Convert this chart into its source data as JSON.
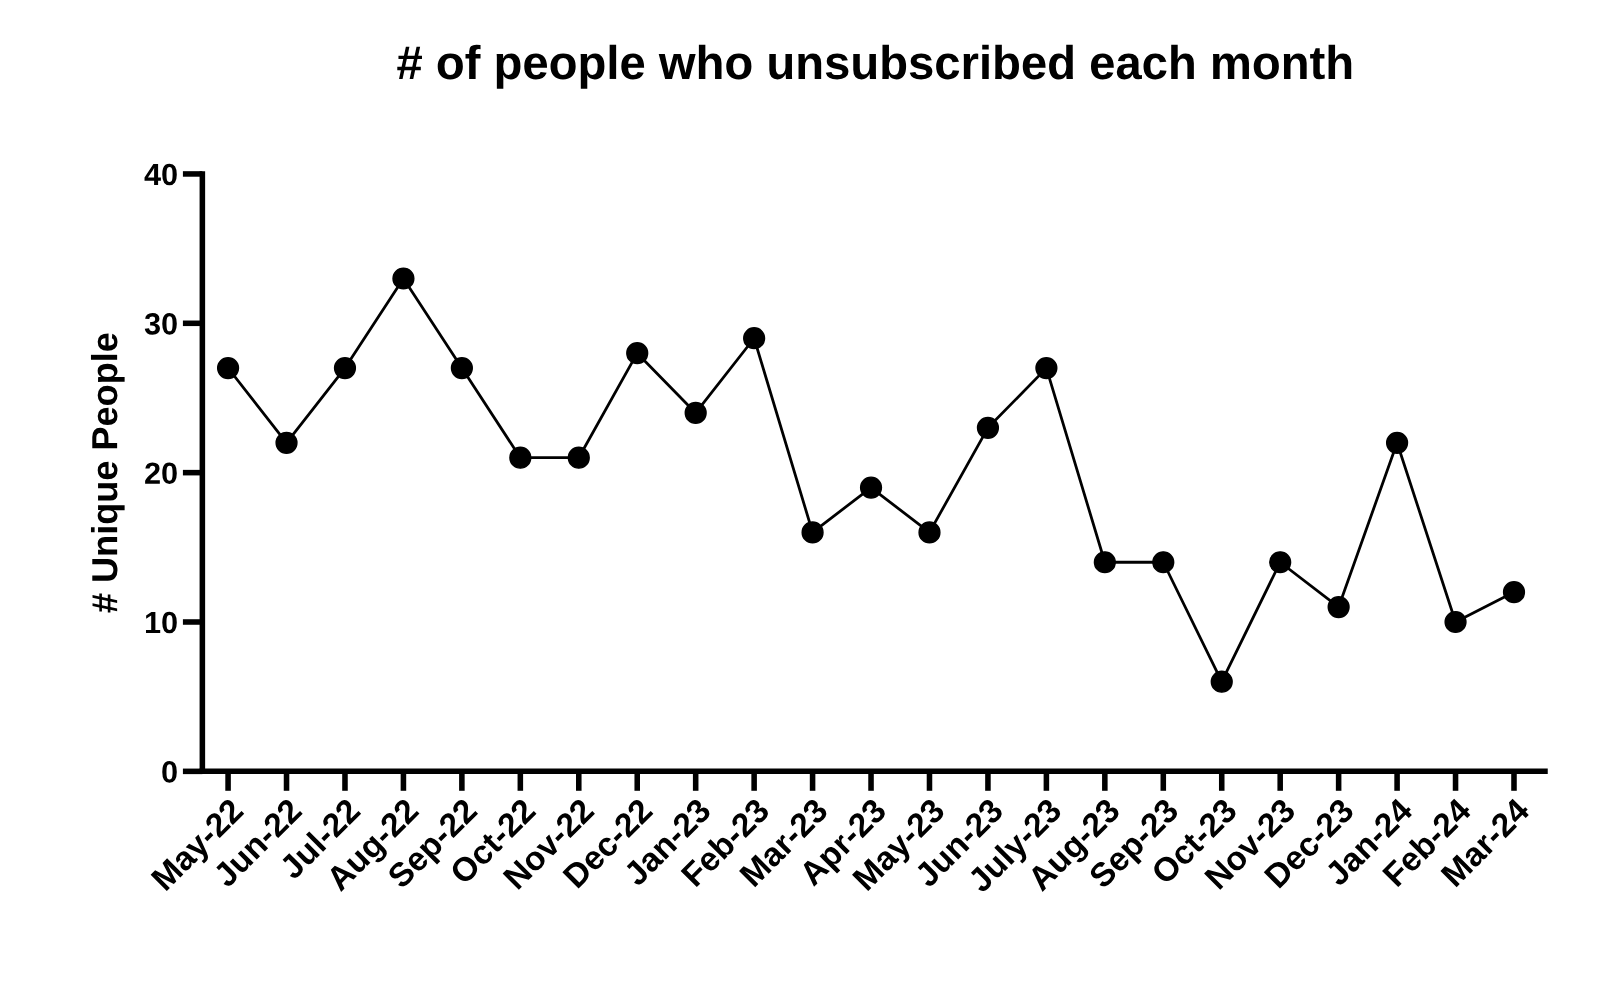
{
  "chart_data": {
    "type": "line",
    "title": "# of people who unsubscribed each month",
    "ylabel": "# Unique People",
    "categories": [
      "May-22",
      "Jun-22",
      "Jul-22",
      "Aug-22",
      "Sep-22",
      "Oct-22",
      "Nov-22",
      "Dec-22",
      "Jan-23",
      "Feb-23",
      "Mar-23",
      "Apr-23",
      "May-23",
      "Jun-23",
      "July-23",
      "Aug-23",
      "Sep-23",
      "Oct-23",
      "Nov-23",
      "Dec-23",
      "Jan-24",
      "Feb-24",
      "Mar-24"
    ],
    "series": [
      {
        "color": "#000000",
        "values": [
          27,
          22,
          27,
          33,
          27,
          21,
          21,
          28,
          24,
          29,
          16,
          19,
          16,
          23,
          27,
          14,
          14,
          6,
          14,
          11,
          22,
          10,
          12
        ]
      }
    ],
    "ylim": [
      0,
      40
    ],
    "yticks": [
      0,
      10,
      20,
      30,
      40
    ],
    "marker": "circle",
    "line_style": "solid"
  }
}
